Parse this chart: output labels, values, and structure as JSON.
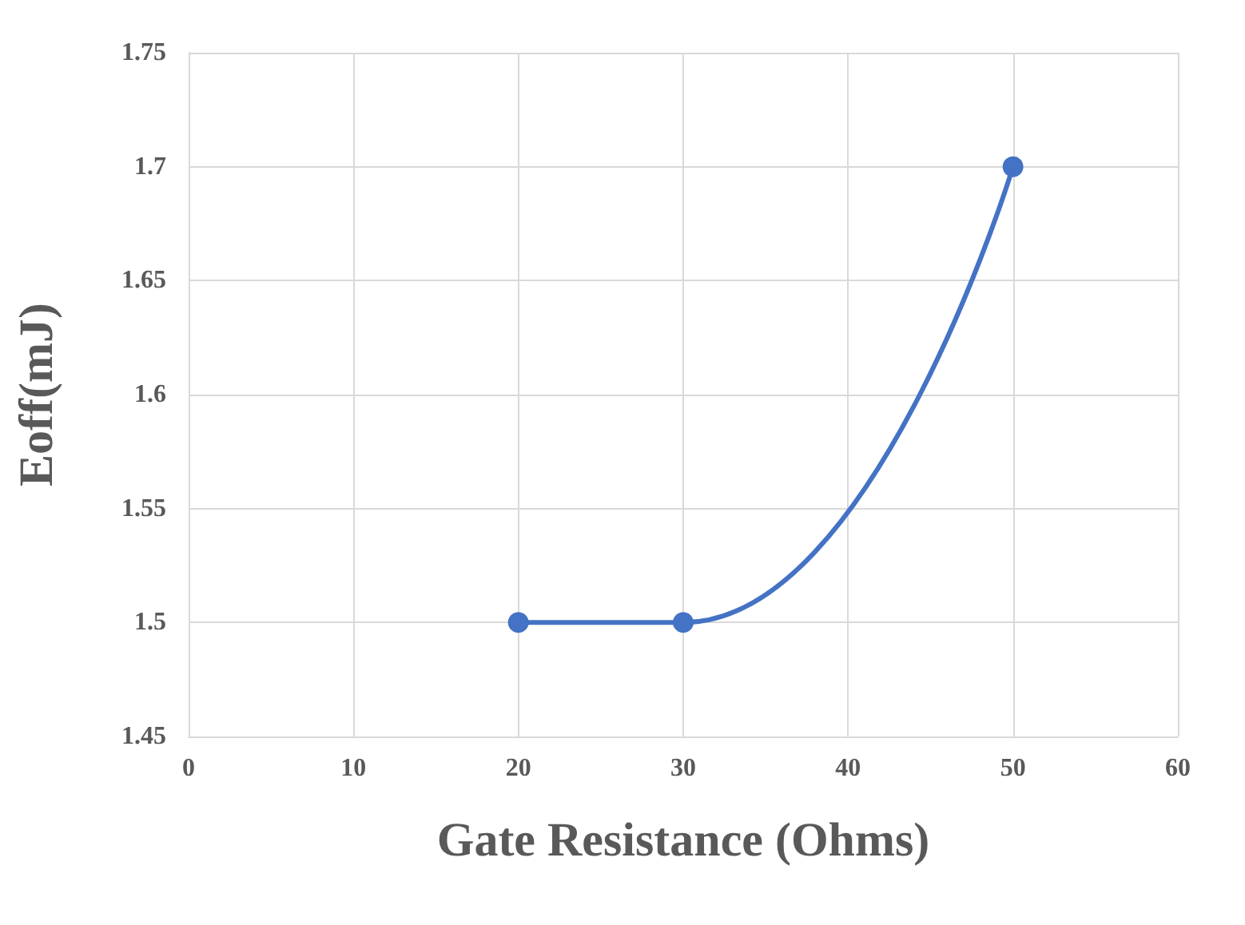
{
  "chart_data": {
    "type": "line",
    "xlabel": "Gate Resistance (Ohms)",
    "ylabel": "Eoff(mJ)",
    "x": [
      20,
      30,
      50
    ],
    "series": [
      {
        "color": "#4472c4",
        "values": [
          1.5,
          1.5,
          1.7
        ]
      }
    ],
    "xlim": [
      0,
      60
    ],
    "xticks": [
      0,
      10,
      20,
      30,
      40,
      50,
      60
    ],
    "ylim": [
      1.45,
      1.75
    ],
    "yticks": [
      1.45,
      1.5,
      1.55,
      1.6,
      1.65,
      1.7,
      1.75
    ],
    "grid": true,
    "marker": "circle",
    "line_style": "solid"
  }
}
